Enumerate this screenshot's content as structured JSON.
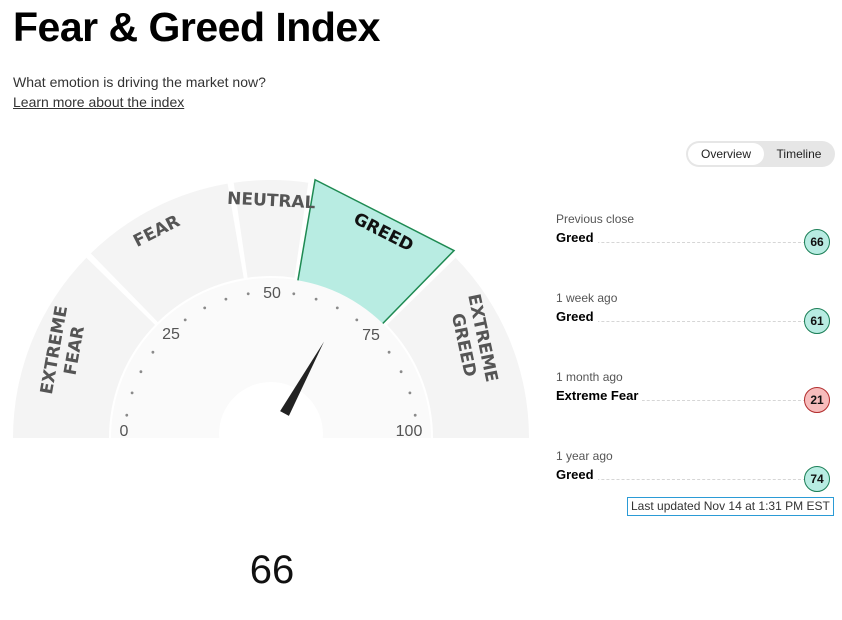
{
  "header": {
    "title": "Fear & Greed Index",
    "subtitle": "What emotion is driving the market now?",
    "learn_more": "Learn more about the index"
  },
  "toggle": {
    "overview": "Overview",
    "timeline": "Timeline",
    "active": "Overview"
  },
  "gauge": {
    "value": 66,
    "value_text": "66",
    "current_segment": "Greed",
    "segments": [
      {
        "line1": "EXTREME",
        "line2": "FEAR",
        "range": [
          0,
          25
        ]
      },
      {
        "line1": "FEAR",
        "range": [
          25,
          45
        ]
      },
      {
        "line1": "NEUTRAL",
        "range": [
          45,
          55
        ]
      },
      {
        "line1": "GREED",
        "range": [
          55,
          75
        ]
      },
      {
        "line1": "EXTREME",
        "line2": "GREED",
        "range": [
          75,
          100
        ]
      }
    ],
    "ticks": {
      "t0": "0",
      "t25": "25",
      "t50": "50",
      "t75": "75",
      "t100": "100"
    },
    "colors": {
      "active_fill": "#b8ece2",
      "active_stroke": "#1e8a52",
      "segment_fill": "#f4f4f4"
    }
  },
  "history": [
    {
      "period": "Previous close",
      "label": "Greed",
      "value": "66",
      "status": "greed"
    },
    {
      "period": "1 week ago",
      "label": "Greed",
      "value": "61",
      "status": "greed"
    },
    {
      "period": "1 month ago",
      "label": "Extreme Fear",
      "value": "21",
      "status": "fear"
    },
    {
      "period": "1 year ago",
      "label": "Greed",
      "value": "74",
      "status": "greed"
    }
  ],
  "last_updated": "Last updated Nov 14 at 1:31 PM EST"
}
